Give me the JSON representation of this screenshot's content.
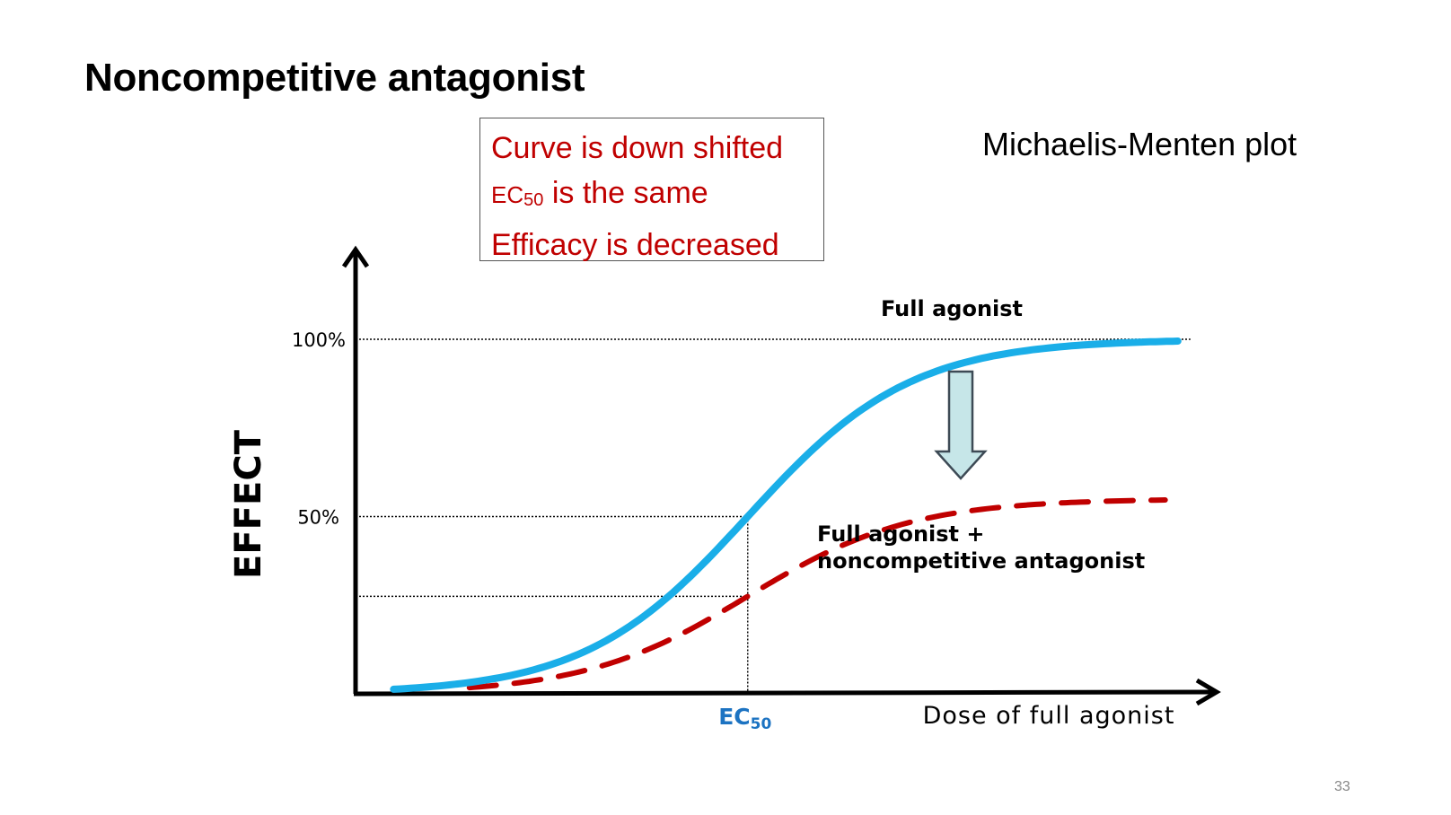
{
  "slide": {
    "title": "Noncompetitive antagonist",
    "page_number": "33"
  },
  "callout": {
    "line1": "Curve is down shifted",
    "line2_prefix": "EC",
    "line2_sub": "50",
    "line2_rest": " is the same",
    "line3": "Efficacy is decreased"
  },
  "plot_label": "Michaelis-Menten plot",
  "colors": {
    "full_agonist": "#1aaee8",
    "antagonist": "#c00000",
    "arrow_fill": "#c6e6e8",
    "arrow_stroke": "#3d4a55",
    "ec50_label": "#1c73c2",
    "callout_text": "#c00000"
  },
  "chart_data": {
    "type": "line",
    "xlabel": "Dose of full agonist",
    "ylabel": "EFFECT",
    "ylim": [
      0,
      100
    ],
    "yticks": [
      "100%",
      "50%"
    ],
    "ytick_values": [
      100,
      50
    ],
    "x_marker": {
      "label": "EC",
      "sub": "50",
      "x": 0
    },
    "x_domain": [
      -3.1,
      3.6
    ],
    "series": [
      {
        "name": "Full agonist",
        "style": "solid",
        "emax": 100,
        "x_range": [
          -2.8,
          3.4
        ]
      },
      {
        "name": "Full agonist + noncompetitive antagonist",
        "style": "dashed",
        "emax": 55,
        "x_range": [
          -2.2,
          3.3
        ]
      }
    ],
    "reference_lines": [
      {
        "y": 100,
        "to": "x_end"
      },
      {
        "y": 50,
        "to": "ec50"
      },
      {
        "y": 27.5,
        "to": "ec50"
      }
    ],
    "annotation": "down-arrow",
    "legend": "curve labels"
  }
}
